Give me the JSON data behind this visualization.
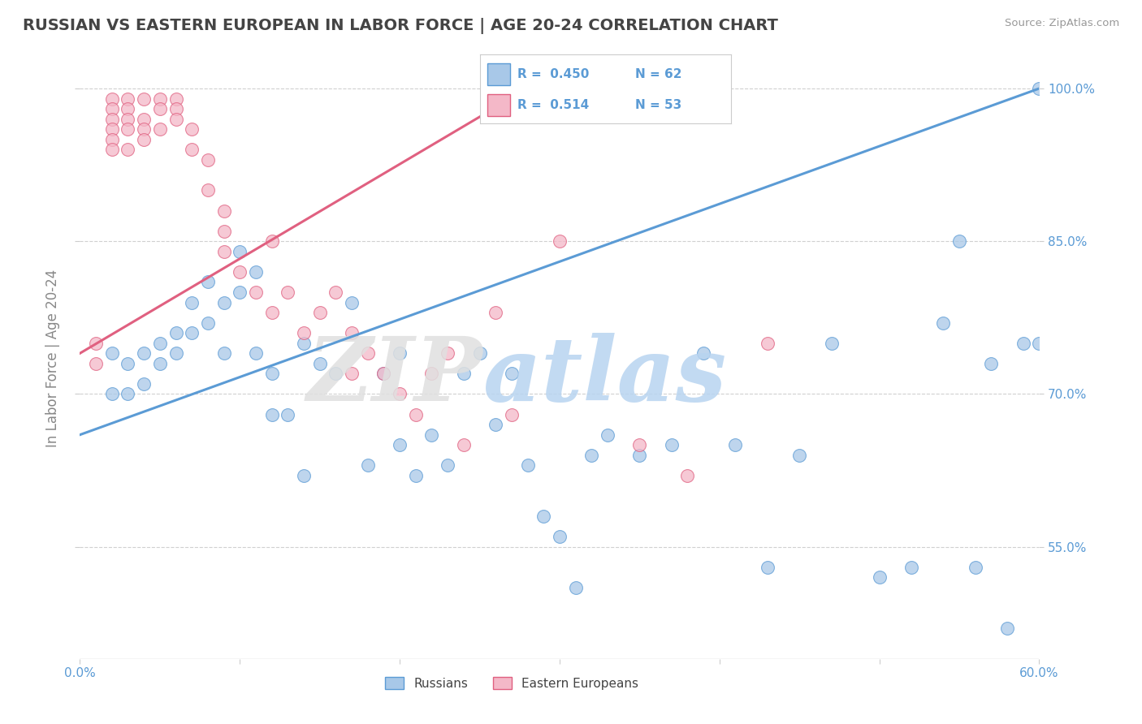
{
  "title": "RUSSIAN VS EASTERN EUROPEAN IN LABOR FORCE | AGE 20-24 CORRELATION CHART",
  "source": "Source: ZipAtlas.com",
  "ylabel": "In Labor Force | Age 20-24",
  "xlim": [
    0.0,
    0.6
  ],
  "ylim": [
    0.44,
    1.03
  ],
  "blue_color": "#a8c8e8",
  "pink_color": "#f4b8c8",
  "blue_edge": "#5b9bd5",
  "pink_edge": "#e06080",
  "blue_line": "#5b9bd5",
  "pink_line": "#e06080",
  "legend_r_blue": "R =  0.450",
  "legend_n_blue": "N = 62",
  "legend_r_pink": "R =  0.514",
  "legend_n_pink": "N = 53",
  "russians_x": [
    0.02,
    0.02,
    0.03,
    0.03,
    0.04,
    0.04,
    0.05,
    0.05,
    0.06,
    0.06,
    0.07,
    0.07,
    0.08,
    0.08,
    0.09,
    0.09,
    0.1,
    0.1,
    0.11,
    0.11,
    0.12,
    0.12,
    0.13,
    0.14,
    0.14,
    0.15,
    0.16,
    0.17,
    0.18,
    0.19,
    0.2,
    0.2,
    0.21,
    0.22,
    0.23,
    0.24,
    0.25,
    0.26,
    0.27,
    0.28,
    0.29,
    0.3,
    0.31,
    0.32,
    0.33,
    0.35,
    0.37,
    0.39,
    0.41,
    0.43,
    0.45,
    0.47,
    0.5,
    0.52,
    0.54,
    0.55,
    0.56,
    0.57,
    0.58,
    0.59,
    0.6,
    0.6
  ],
  "russians_y": [
    0.74,
    0.7,
    0.73,
    0.7,
    0.74,
    0.71,
    0.75,
    0.73,
    0.76,
    0.74,
    0.79,
    0.76,
    0.81,
    0.77,
    0.79,
    0.74,
    0.84,
    0.8,
    0.82,
    0.74,
    0.72,
    0.68,
    0.68,
    0.75,
    0.62,
    0.73,
    0.72,
    0.79,
    0.63,
    0.72,
    0.74,
    0.65,
    0.62,
    0.66,
    0.63,
    0.72,
    0.74,
    0.67,
    0.72,
    0.63,
    0.58,
    0.56,
    0.51,
    0.64,
    0.66,
    0.64,
    0.65,
    0.74,
    0.65,
    0.53,
    0.64,
    0.75,
    0.52,
    0.53,
    0.77,
    0.85,
    0.53,
    0.73,
    0.47,
    0.75,
    0.75,
    1.0
  ],
  "eastern_x": [
    0.01,
    0.01,
    0.02,
    0.02,
    0.02,
    0.02,
    0.02,
    0.02,
    0.03,
    0.03,
    0.03,
    0.03,
    0.03,
    0.04,
    0.04,
    0.04,
    0.04,
    0.05,
    0.05,
    0.05,
    0.06,
    0.06,
    0.06,
    0.07,
    0.07,
    0.08,
    0.08,
    0.09,
    0.09,
    0.09,
    0.1,
    0.11,
    0.12,
    0.12,
    0.13,
    0.14,
    0.15,
    0.16,
    0.17,
    0.17,
    0.18,
    0.19,
    0.2,
    0.21,
    0.22,
    0.23,
    0.24,
    0.26,
    0.27,
    0.3,
    0.35,
    0.38,
    0.43
  ],
  "eastern_y": [
    0.75,
    0.73,
    0.99,
    0.98,
    0.97,
    0.96,
    0.95,
    0.94,
    0.99,
    0.98,
    0.97,
    0.96,
    0.94,
    0.99,
    0.97,
    0.96,
    0.95,
    0.99,
    0.98,
    0.96,
    0.99,
    0.98,
    0.97,
    0.96,
    0.94,
    0.93,
    0.9,
    0.88,
    0.86,
    0.84,
    0.82,
    0.8,
    0.85,
    0.78,
    0.8,
    0.76,
    0.78,
    0.8,
    0.76,
    0.72,
    0.74,
    0.72,
    0.7,
    0.68,
    0.72,
    0.74,
    0.65,
    0.78,
    0.68,
    0.85,
    0.65,
    0.62,
    0.75
  ]
}
